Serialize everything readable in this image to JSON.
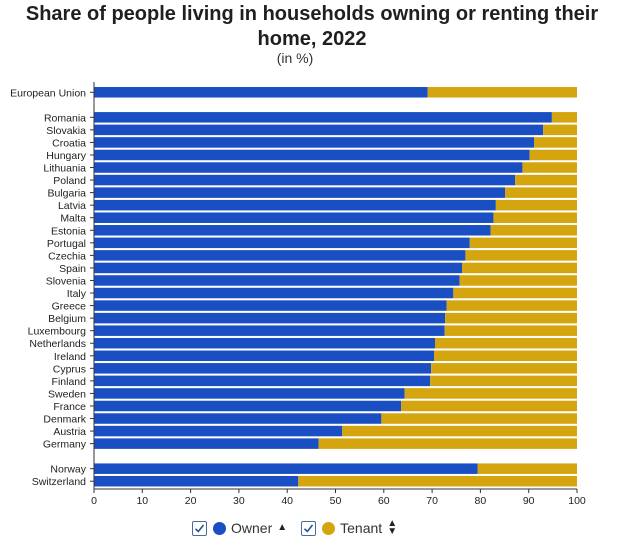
{
  "header": {
    "title_line1": "Share of people living in households owning or renting their",
    "title_line2": "home, 2022",
    "subtitle": "(in %)"
  },
  "legend": {
    "owner_label": "Owner",
    "tenant_label": "Tenant"
  },
  "colors": {
    "owner": "#1a4fc4",
    "tenant": "#d4a50e"
  },
  "chart_data": {
    "type": "bar",
    "orientation": "horizontal",
    "stacked": true,
    "title": "Share of people living in households owning or renting their home, 2022",
    "subtitle": "(in %)",
    "xlim": [
      0,
      100
    ],
    "x_ticks": [
      0,
      10,
      20,
      30,
      40,
      50,
      60,
      70,
      80,
      90,
      100
    ],
    "groups": [
      [
        "European Union"
      ],
      [
        "Romania",
        "Slovakia",
        "Croatia",
        "Hungary",
        "Lithuania",
        "Poland",
        "Bulgaria",
        "Latvia",
        "Malta",
        "Estonia",
        "Portugal",
        "Czechia",
        "Spain",
        "Slovenia",
        "Italy",
        "Greece",
        "Belgium",
        "Luxembourg",
        "Netherlands",
        "Ireland",
        "Cyprus",
        "Finland",
        "Sweden",
        "France",
        "Denmark",
        "Austria",
        "Germany"
      ],
      [
        "Norway",
        "Switzerland"
      ]
    ],
    "categories": [
      "European Union",
      "Romania",
      "Slovakia",
      "Croatia",
      "Hungary",
      "Lithuania",
      "Poland",
      "Bulgaria",
      "Latvia",
      "Malta",
      "Estonia",
      "Portugal",
      "Czechia",
      "Spain",
      "Slovenia",
      "Italy",
      "Greece",
      "Belgium",
      "Luxembourg",
      "Netherlands",
      "Ireland",
      "Cyprus",
      "Finland",
      "Sweden",
      "France",
      "Denmark",
      "Austria",
      "Germany",
      "Norway",
      "Switzerland"
    ],
    "series": [
      {
        "name": "Owner",
        "values": [
          69.1,
          94.8,
          93.0,
          91.1,
          90.2,
          88.7,
          87.2,
          85.1,
          83.2,
          82.7,
          82.1,
          77.8,
          76.9,
          76.2,
          75.7,
          74.4,
          73.0,
          72.7,
          72.6,
          70.6,
          70.4,
          69.8,
          69.6,
          64.3,
          63.6,
          59.5,
          51.4,
          46.5,
          79.4,
          42.3
        ]
      },
      {
        "name": "Tenant",
        "values": [
          30.9,
          5.2,
          7.0,
          8.9,
          9.8,
          11.3,
          12.8,
          14.9,
          16.8,
          17.3,
          17.9,
          22.2,
          23.1,
          23.8,
          24.3,
          25.6,
          27.0,
          27.3,
          27.4,
          29.4,
          29.6,
          30.2,
          30.4,
          35.7,
          36.4,
          40.5,
          48.6,
          53.5,
          20.6,
          57.7
        ]
      }
    ]
  }
}
